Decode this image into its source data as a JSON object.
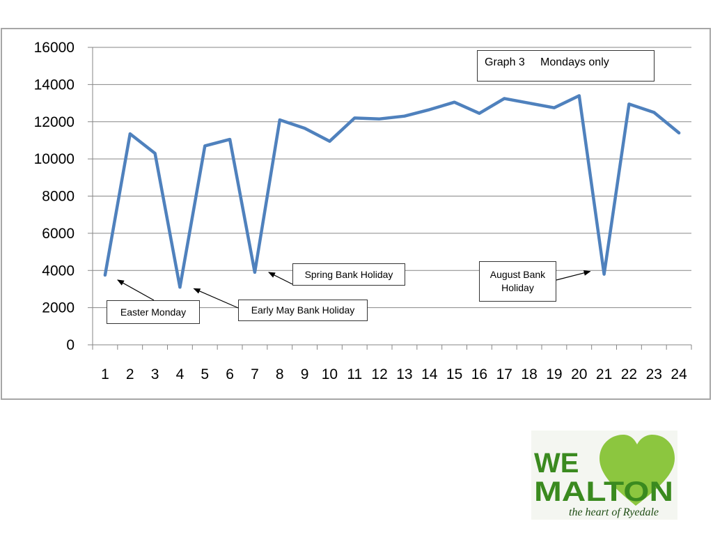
{
  "chart_data": {
    "type": "line",
    "title": "Graph 3     Mondays only",
    "categories": [
      "1",
      "2",
      "3",
      "4",
      "5",
      "6",
      "7",
      "8",
      "9",
      "10",
      "11",
      "12",
      "13",
      "14",
      "15",
      "16",
      "17",
      "18",
      "19",
      "20",
      "21",
      "22",
      "23",
      "24"
    ],
    "series": [
      {
        "values": [
          3750,
          11350,
          10300,
          3100,
          10700,
          11050,
          3900,
          12100,
          11650,
          10950,
          12200,
          12150,
          12300,
          12650,
          13050,
          12450,
          13250,
          13000,
          12750,
          13400,
          3800,
          12950,
          12500,
          11400
        ]
      }
    ],
    "ylim": [
      0,
      16000
    ],
    "yticks": [
      0,
      2000,
      4000,
      6000,
      8000,
      10000,
      12000,
      14000,
      16000
    ],
    "grid": true,
    "line_color": "#4f81bd",
    "annotations": [
      {
        "label": "Easter Monday",
        "point_index": 0
      },
      {
        "label": "Early May Bank Holiday",
        "point_index": 3
      },
      {
        "label": "Spring Bank Holiday",
        "point_index": 6
      },
      {
        "label": "August Bank Holiday",
        "point_index": 20
      }
    ]
  },
  "logo": {
    "line1": "WE",
    "line2": "MALTON",
    "tagline": "the heart of Ryedale",
    "heart_color": "#8cc63f"
  }
}
